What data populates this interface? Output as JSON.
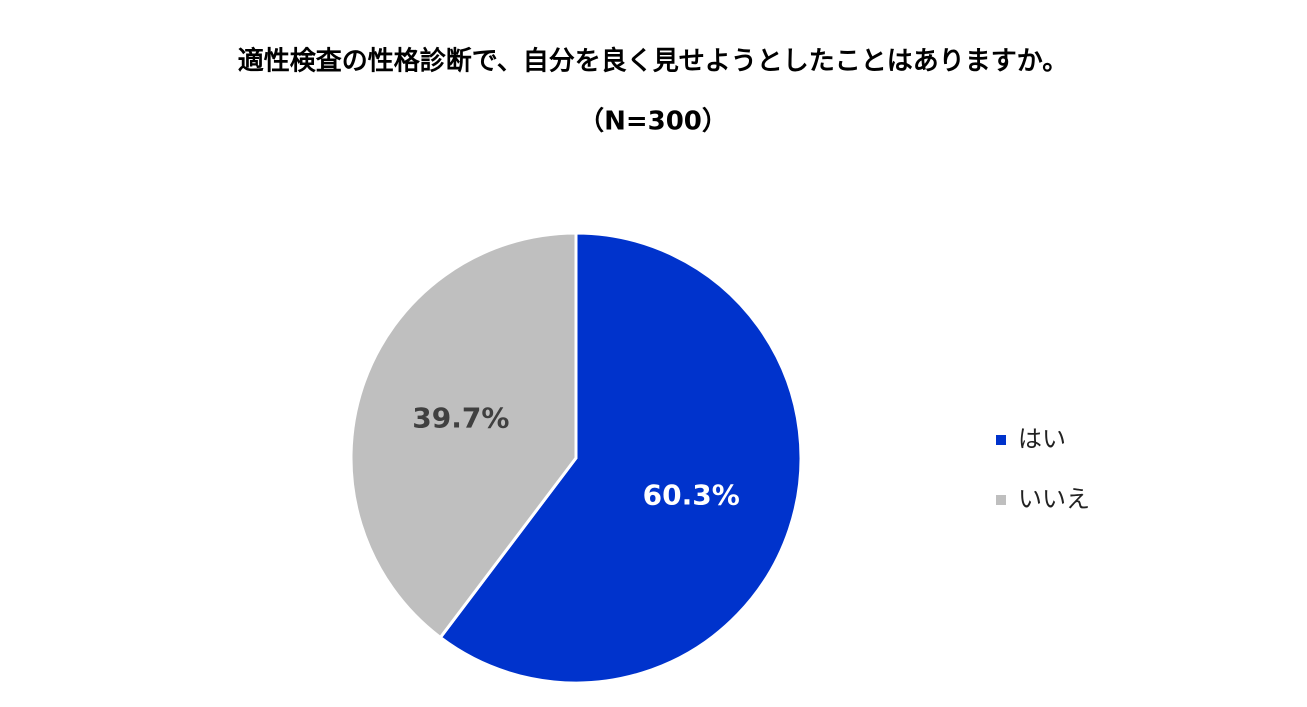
{
  "chart_data": {
    "type": "pie",
    "title": "適性検査の性格診断で、自分を良く見せようとしたことはありますか。",
    "subtitle": "（N=300）",
    "categories": [
      "はい",
      "いいえ"
    ],
    "values": [
      60.3,
      39.7
    ],
    "value_labels": [
      "60.3%",
      "39.7%"
    ],
    "colors": [
      "#0033cc",
      "#bfbfbf"
    ],
    "legend": "right"
  }
}
